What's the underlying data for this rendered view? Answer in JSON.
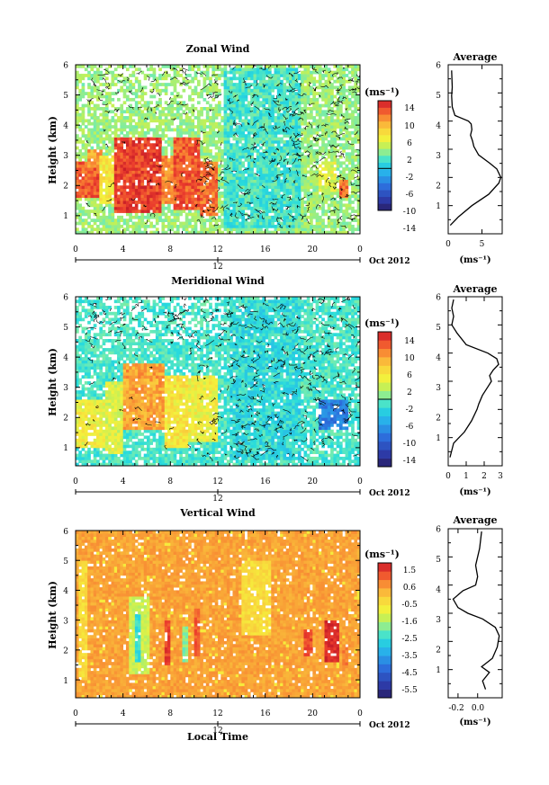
{
  "chart_data": [
    {
      "type": "heatmap",
      "title": "Zonal Wind",
      "ylabel": "Height (km)",
      "x_ticks": [
        "0",
        "4",
        "8",
        "12",
        "16",
        "20",
        "0"
      ],
      "y_ticks": [
        "1",
        "2",
        "3",
        "4",
        "5",
        "6"
      ],
      "xlim": [
        0,
        24
      ],
      "ylim": [
        0.4,
        6
      ],
      "date_center_label": "12",
      "date_month_label": "Oct 2012",
      "colorbar": {
        "unit_label": "(ms⁻¹)",
        "tick_labels": [
          "14",
          "10",
          "6",
          "2",
          "-2",
          "-6",
          "-10",
          "-14"
        ],
        "range": [
          -16,
          16
        ],
        "contour_level": 0
      },
      "regions": [
        {
          "x": [
            0.0,
            2.0
          ],
          "y": [
            1.6,
            2.8
          ],
          "value": 13
        },
        {
          "x": [
            1.0,
            2.2
          ],
          "y": [
            2.6,
            3.2
          ],
          "value": 10
        },
        {
          "x": [
            2.0,
            3.2
          ],
          "y": [
            1.4,
            3.0
          ],
          "value": 6
        },
        {
          "x": [
            3.2,
            7.2
          ],
          "y": [
            1.1,
            3.6
          ],
          "value": 14
        },
        {
          "x": [
            7.2,
            8.2
          ],
          "y": [
            1.4,
            3.0
          ],
          "value": 11
        },
        {
          "x": [
            8.2,
            10.5
          ],
          "y": [
            1.2,
            3.6
          ],
          "value": 13
        },
        {
          "x": [
            10.5,
            12.0
          ],
          "y": [
            1.0,
            2.8
          ],
          "value": 12
        },
        {
          "x": [
            12.5,
            19.0
          ],
          "y": [
            0.6,
            5.9
          ],
          "value": -1
        },
        {
          "x": [
            20.5,
            22.0
          ],
          "y": [
            1.8,
            2.8
          ],
          "value": 4
        },
        {
          "x": [
            22.3,
            23.0
          ],
          "y": [
            1.6,
            2.2
          ],
          "value": 12
        }
      ],
      "profile": {
        "title": "Average",
        "xlabel": "(ms⁻¹)",
        "x_ticks": [
          "0",
          "5"
        ],
        "xlim": [
          0,
          8
        ],
        "y_ticks": [
          "1",
          "2",
          "3",
          "4",
          "5",
          "6"
        ],
        "ylim": [
          0,
          6
        ],
        "x": [
          0.3,
          1.5,
          3.5,
          6.0,
          7.5,
          7.8,
          7.2,
          6.2,
          4.5,
          3.8,
          3.6,
          3.3,
          3.5,
          3.4,
          3.0,
          1.0,
          0.6,
          0.5,
          0.6,
          0.5
        ],
        "y": [
          0.3,
          0.6,
          1.0,
          1.4,
          1.8,
          2.0,
          2.3,
          2.5,
          2.8,
          3.1,
          3.3,
          3.5,
          3.7,
          3.9,
          4.0,
          4.2,
          4.5,
          4.9,
          5.2,
          5.8
        ]
      }
    },
    {
      "type": "heatmap",
      "title": "Meridional Wind",
      "ylabel": "Height (km)",
      "x_ticks": [
        "0",
        "4",
        "8",
        "12",
        "16",
        "20",
        "0"
      ],
      "y_ticks": [
        "1",
        "2",
        "3",
        "4",
        "5",
        "6"
      ],
      "xlim": [
        0,
        24
      ],
      "ylim": [
        0.4,
        6
      ],
      "date_center_label": "12",
      "date_month_label": "Oct 2012",
      "colorbar": {
        "unit_label": "(ms⁻¹)",
        "tick_labels": [
          "14",
          "10",
          "6",
          "2",
          "-2",
          "-6",
          "-10",
          "-14"
        ],
        "range": [
          -16,
          16
        ],
        "contour_level": 0
      },
      "regions": [
        {
          "x": [
            0.0,
            2.5
          ],
          "y": [
            1.0,
            2.6
          ],
          "value": 5
        },
        {
          "x": [
            2.5,
            4.0
          ],
          "y": [
            0.8,
            3.2
          ],
          "value": 4
        },
        {
          "x": [
            4.0,
            7.5
          ],
          "y": [
            1.6,
            3.8
          ],
          "value": 10
        },
        {
          "x": [
            7.5,
            9.5
          ],
          "y": [
            1.0,
            3.4
          ],
          "value": 6
        },
        {
          "x": [
            9.5,
            12.0
          ],
          "y": [
            1.2,
            3.4
          ],
          "value": 5
        },
        {
          "x": [
            13.0,
            19.0
          ],
          "y": [
            0.6,
            5.9
          ],
          "value": -2
        },
        {
          "x": [
            20.5,
            23.0
          ],
          "y": [
            1.6,
            2.6
          ],
          "value": -8
        }
      ],
      "profile": {
        "title": "Average",
        "xlabel": "(ms⁻¹)",
        "x_ticks": [
          "0",
          "1",
          "2",
          "3"
        ],
        "xlim": [
          0,
          3
        ],
        "y_ticks": [
          "1",
          "2",
          "3",
          "4",
          "5",
          "6"
        ],
        "ylim": [
          0,
          6
        ],
        "x": [
          0.1,
          0.3,
          0.9,
          1.3,
          1.6,
          1.7,
          1.9,
          2.2,
          2.4,
          2.3,
          2.5,
          2.8,
          2.7,
          2.2,
          1.0,
          0.5,
          0.2,
          0.3,
          0.2,
          0.3
        ],
        "y": [
          0.3,
          0.8,
          1.2,
          1.6,
          2.0,
          2.2,
          2.5,
          2.8,
          3.0,
          3.2,
          3.4,
          3.6,
          3.8,
          4.0,
          4.3,
          4.7,
          5.0,
          5.3,
          5.6,
          5.9
        ]
      }
    },
    {
      "type": "heatmap",
      "title": "Vertical Wind",
      "xlabel": "Local Time",
      "ylabel": "Height (km)",
      "x_ticks": [
        "0",
        "4",
        "8",
        "12",
        "16",
        "20",
        "0"
      ],
      "y_ticks": [
        "1",
        "2",
        "3",
        "4",
        "5",
        "6"
      ],
      "xlim": [
        0,
        24
      ],
      "ylim": [
        0.4,
        6
      ],
      "date_center_label": "12",
      "date_month_label": "Oct 2012",
      "colorbar": {
        "unit_label": "(ms⁻¹)",
        "tick_labels": [
          "1.5",
          "0.6",
          "-0.5",
          "-1.6",
          "-2.5",
          "-3.5",
          "-4.5",
          "-5.5"
        ],
        "range": [
          -6,
          2
        ]
      },
      "background_value": 0.5,
      "regions": [
        {
          "x": [
            4.5,
            6.2
          ],
          "y": [
            1.2,
            3.8
          ],
          "value": -1.2
        },
        {
          "x": [
            5.0,
            5.6
          ],
          "y": [
            1.6,
            3.2
          ],
          "value": -2.4
        },
        {
          "x": [
            7.6,
            8.1
          ],
          "y": [
            1.5,
            3.0
          ],
          "value": 1.5
        },
        {
          "x": [
            9.0,
            9.5
          ],
          "y": [
            1.6,
            2.8
          ],
          "value": -1.8
        },
        {
          "x": [
            10.0,
            10.5
          ],
          "y": [
            1.8,
            3.4
          ],
          "value": 1.2
        },
        {
          "x": [
            14.0,
            16.5
          ],
          "y": [
            2.5,
            5.0
          ],
          "value": -0.3
        },
        {
          "x": [
            19.3,
            20.0
          ],
          "y": [
            1.8,
            2.7
          ],
          "value": 1.4
        },
        {
          "x": [
            21.0,
            22.3
          ],
          "y": [
            1.6,
            3.0
          ],
          "value": 1.8
        },
        {
          "x": [
            22.5,
            23.0
          ],
          "y": [
            1.5,
            2.2
          ],
          "value": 0.9
        },
        {
          "x": [
            0.3,
            1.0
          ],
          "y": [
            1.0,
            5.0
          ],
          "value": -0.3
        }
      ],
      "profile": {
        "title": "Average",
        "xlabel": "(ms⁻¹)",
        "x_ticks": [
          "-0.2",
          "0.0"
        ],
        "xlim": [
          -0.3,
          0.25
        ],
        "y_ticks": [
          "1",
          "2",
          "3",
          "4",
          "5",
          "6"
        ],
        "ylim": [
          0,
          6
        ],
        "x": [
          0.08,
          0.05,
          0.12,
          0.04,
          0.15,
          0.2,
          0.22,
          0.18,
          0.05,
          -0.1,
          -0.2,
          -0.25,
          -0.15,
          -0.02,
          0.0,
          -0.02,
          0.0,
          0.02,
          0.03,
          0.04
        ],
        "y": [
          0.3,
          0.6,
          0.9,
          1.1,
          1.4,
          1.8,
          2.2,
          2.5,
          2.8,
          3.0,
          3.2,
          3.5,
          3.8,
          4.0,
          4.3,
          4.7,
          5.0,
          5.3,
          5.6,
          5.9
        ]
      }
    }
  ]
}
